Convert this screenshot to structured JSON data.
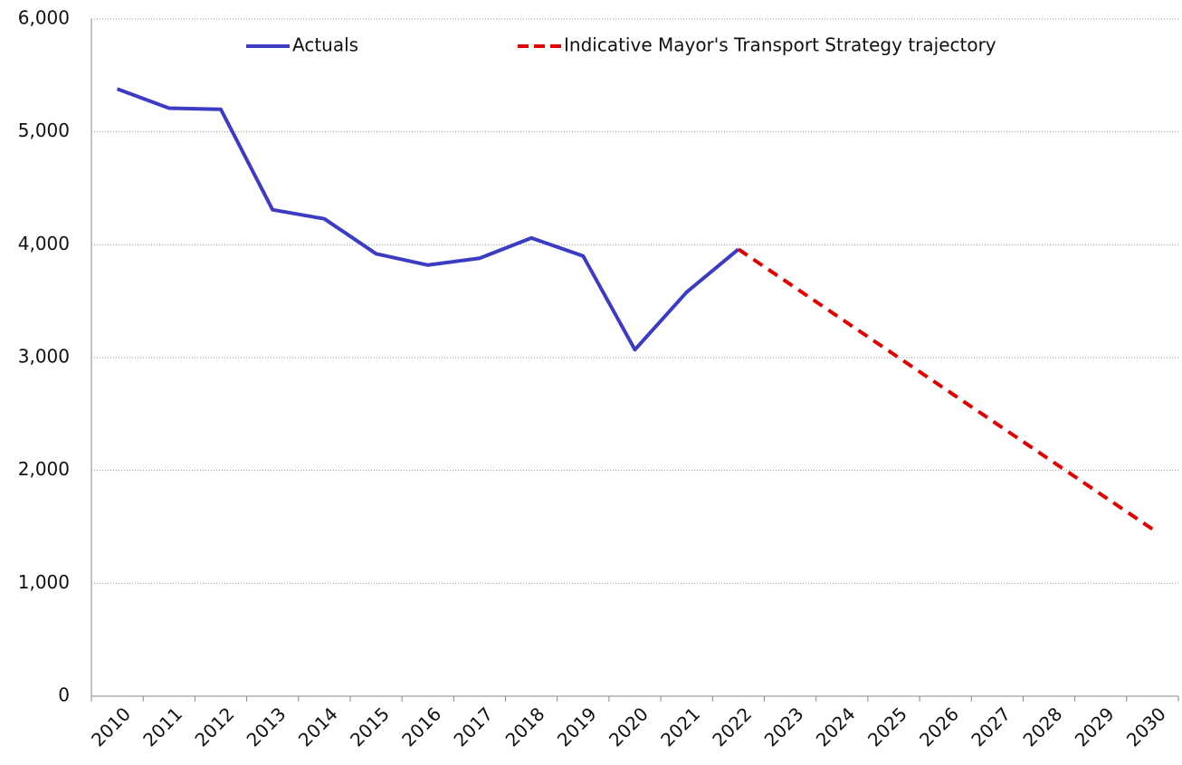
{
  "chart_data": {
    "type": "line",
    "categories": [
      "2010",
      "2011",
      "2012",
      "2013",
      "2014",
      "2015",
      "2016",
      "2017",
      "2018",
      "2019",
      "2020",
      "2021",
      "2022",
      "2023",
      "2024",
      "2025",
      "2026",
      "2027",
      "2028",
      "2029",
      "2030"
    ],
    "series": [
      {
        "name": "Actuals",
        "color": "#3b3bc4",
        "dash": false,
        "values": [
          5380,
          5210,
          5200,
          4310,
          4230,
          3920,
          3820,
          3880,
          4060,
          3900,
          3070,
          3580,
          3960,
          null,
          null,
          null,
          null,
          null,
          null,
          null,
          null
        ]
      },
      {
        "name": "Indicative Mayor's Transport Strategy trajectory",
        "color": "#e00000",
        "dash": true,
        "values": [
          null,
          null,
          null,
          null,
          null,
          null,
          null,
          null,
          null,
          null,
          null,
          null,
          3960,
          3650,
          3340,
          3030,
          2720,
          2410,
          2100,
          1790,
          1480
        ]
      }
    ],
    "ylim": [
      0,
      6000
    ],
    "yticks": [
      0,
      {
        "value": 1000,
        "label": "1,000"
      },
      {
        "value": 2000,
        "label": "2,000"
      },
      {
        "value": 3000,
        "label": "3,000"
      },
      {
        "value": 4000,
        "label": "4,000"
      },
      {
        "value": 5000,
        "label": "5,000"
      },
      {
        "value": 6000,
        "label": "6,000"
      }
    ],
    "grid": true,
    "legend": "top"
  }
}
